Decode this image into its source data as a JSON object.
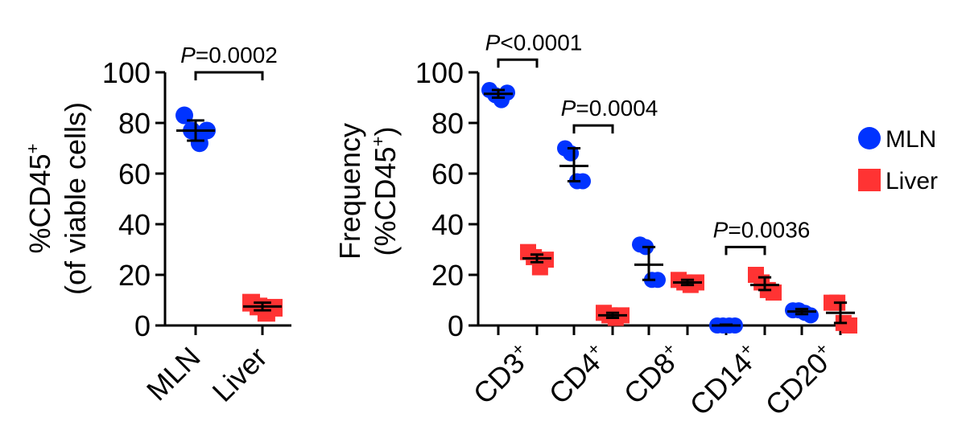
{
  "chart_data": [
    {
      "type": "scatter",
      "ylabel_line1": "%CD45",
      "ylabel_sup": "+",
      "ylabel_line2": "(of viable cells)",
      "yticks": [
        "0",
        "20",
        "40",
        "60",
        "80",
        "100"
      ],
      "ylim": [
        0,
        100
      ],
      "categories": [
        "MLN",
        "Liver"
      ],
      "series": [
        {
          "category": "MLN",
          "color": "#0033ff",
          "marker": "circle",
          "values": [
            83,
            77,
            72,
            77
          ],
          "mean": 77,
          "sd_upper": 81,
          "sd_lower": 73
        },
        {
          "category": "Liver",
          "color": "#ff3333",
          "marker": "square",
          "values": [
            9,
            7.5,
            5,
            7
          ],
          "mean": 7.5,
          "sd_upper": 9,
          "sd_lower": 6
        }
      ],
      "significance": [
        {
          "from": 0,
          "to": 1,
          "y": 100,
          "label_p": "P",
          "label_rest": "=0.0002"
        }
      ]
    },
    {
      "type": "scatter",
      "ylabel_line1": "Frequency",
      "ylabel_line2_pre": "(%CD45",
      "ylabel_sup": "+",
      "ylabel_line2_post": ")",
      "yticks": [
        "0",
        "20",
        "40",
        "60",
        "80",
        "100"
      ],
      "ylim": [
        0,
        100
      ],
      "categories": [
        {
          "name": "CD3",
          "sup": "+"
        },
        {
          "name": "CD4",
          "sup": "+"
        },
        {
          "name": "CD8",
          "sup": "+"
        },
        {
          "name": "CD14",
          "sup": "+"
        },
        {
          "name": "CD20",
          "sup": "+"
        }
      ],
      "groups": [
        {
          "MLN": {
            "values": [
              93,
              91,
              89,
              92
            ],
            "mean": 91.5,
            "sd_upper": 93,
            "sd_lower": 90
          },
          "Liver": {
            "values": [
              29,
              27,
              23,
              26
            ],
            "mean": 26.5,
            "sd_upper": 28,
            "sd_lower": 25
          }
        },
        {
          "MLN": {
            "values": [
              70,
              68,
              57,
              57
            ],
            "mean": 63,
            "sd_upper": 70,
            "sd_lower": 57
          },
          "Liver": {
            "values": [
              5,
              4,
              3,
              4
            ],
            "mean": 4,
            "sd_upper": 5,
            "sd_lower": 3
          }
        },
        {
          "MLN": {
            "values": [
              32,
              31,
              18,
              18
            ],
            "mean": 24,
            "sd_upper": 31,
            "sd_lower": 18
          },
          "Liver": {
            "values": [
              18,
              17,
              16,
              17
            ],
            "mean": 17,
            "sd_upper": 18,
            "sd_lower": 16
          }
        },
        {
          "MLN": {
            "values": [
              0,
              0,
              0,
              0
            ],
            "mean": 0,
            "sd_upper": 0.3,
            "sd_lower": 0
          },
          "Liver": {
            "values": [
              20,
              17,
              14,
              13
            ],
            "mean": 16,
            "sd_upper": 19,
            "sd_lower": 14
          }
        },
        {
          "MLN": {
            "values": [
              6,
              6,
              5,
              4
            ],
            "mean": 5.5,
            "sd_upper": 6.5,
            "sd_lower": 4.5
          },
          "Liver": {
            "values": [
              9,
              9,
              1,
              0
            ],
            "mean": 5,
            "sd_upper": 9,
            "sd_lower": 1
          }
        }
      ],
      "significance": [
        {
          "group": 0,
          "y": 105,
          "label_p": "P",
          "label_rest": "<0.0001"
        },
        {
          "group": 1,
          "y": 79,
          "label_p": "P",
          "label_rest": "=0.0004"
        },
        {
          "group": 3,
          "y": 31,
          "label_p": "P",
          "label_rest": "=0.0036"
        }
      ],
      "legend": {
        "placement": "right",
        "entries": [
          {
            "name": "MLN",
            "color": "#0033ff",
            "marker": "circle"
          },
          {
            "name": "Liver",
            "color": "#ff3333",
            "marker": "square"
          }
        ]
      }
    }
  ]
}
